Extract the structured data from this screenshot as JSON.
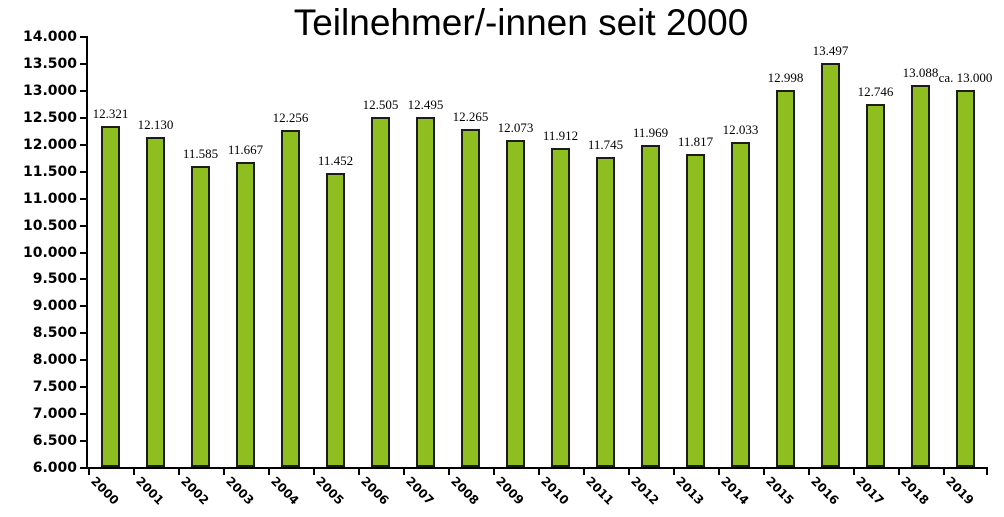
{
  "chart_data": {
    "type": "bar",
    "title": "Teilnehmer/-innen seit 2000",
    "categories": [
      "2000",
      "2001",
      "2002",
      "2003",
      "2004",
      "2005",
      "2006",
      "2007",
      "2008",
      "2009",
      "2010",
      "2011",
      "2012",
      "2013",
      "2014",
      "2015",
      "2016",
      "2017",
      "2018",
      "2019"
    ],
    "values": [
      12321,
      12130,
      11585,
      11667,
      12256,
      11452,
      12505,
      12495,
      12265,
      12073,
      11912,
      11745,
      11969,
      11817,
      12033,
      12998,
      13497,
      12746,
      13088,
      13000
    ],
    "value_labels": [
      "12.321",
      "12.130",
      "11.585",
      "11.667",
      "12.256",
      "11.452",
      "12.505",
      "12.495",
      "12.265",
      "12.073",
      "11.912",
      "11.745",
      "11.969",
      "11.817",
      "12.033",
      "12.998",
      "13.497",
      "12.746",
      "13.088",
      "ca. 13.000"
    ],
    "xlabel": "",
    "ylabel": "",
    "ylim": [
      6000,
      14000
    ],
    "ytick_step": 500,
    "ytick_labels": [
      "6.000",
      "6.500",
      "7.000",
      "7.500",
      "8.000",
      "8.500",
      "9.000",
      "9.500",
      "10.000",
      "10.500",
      "11.000",
      "11.500",
      "12.000",
      "12.500",
      "13.000",
      "13.500",
      "14.000"
    ],
    "grid": false,
    "legend": false,
    "bar_color": "#8EBE20",
    "bar_border_color": "#1c1c1c",
    "text_color": "#000000",
    "background_color": "#ffffff"
  }
}
